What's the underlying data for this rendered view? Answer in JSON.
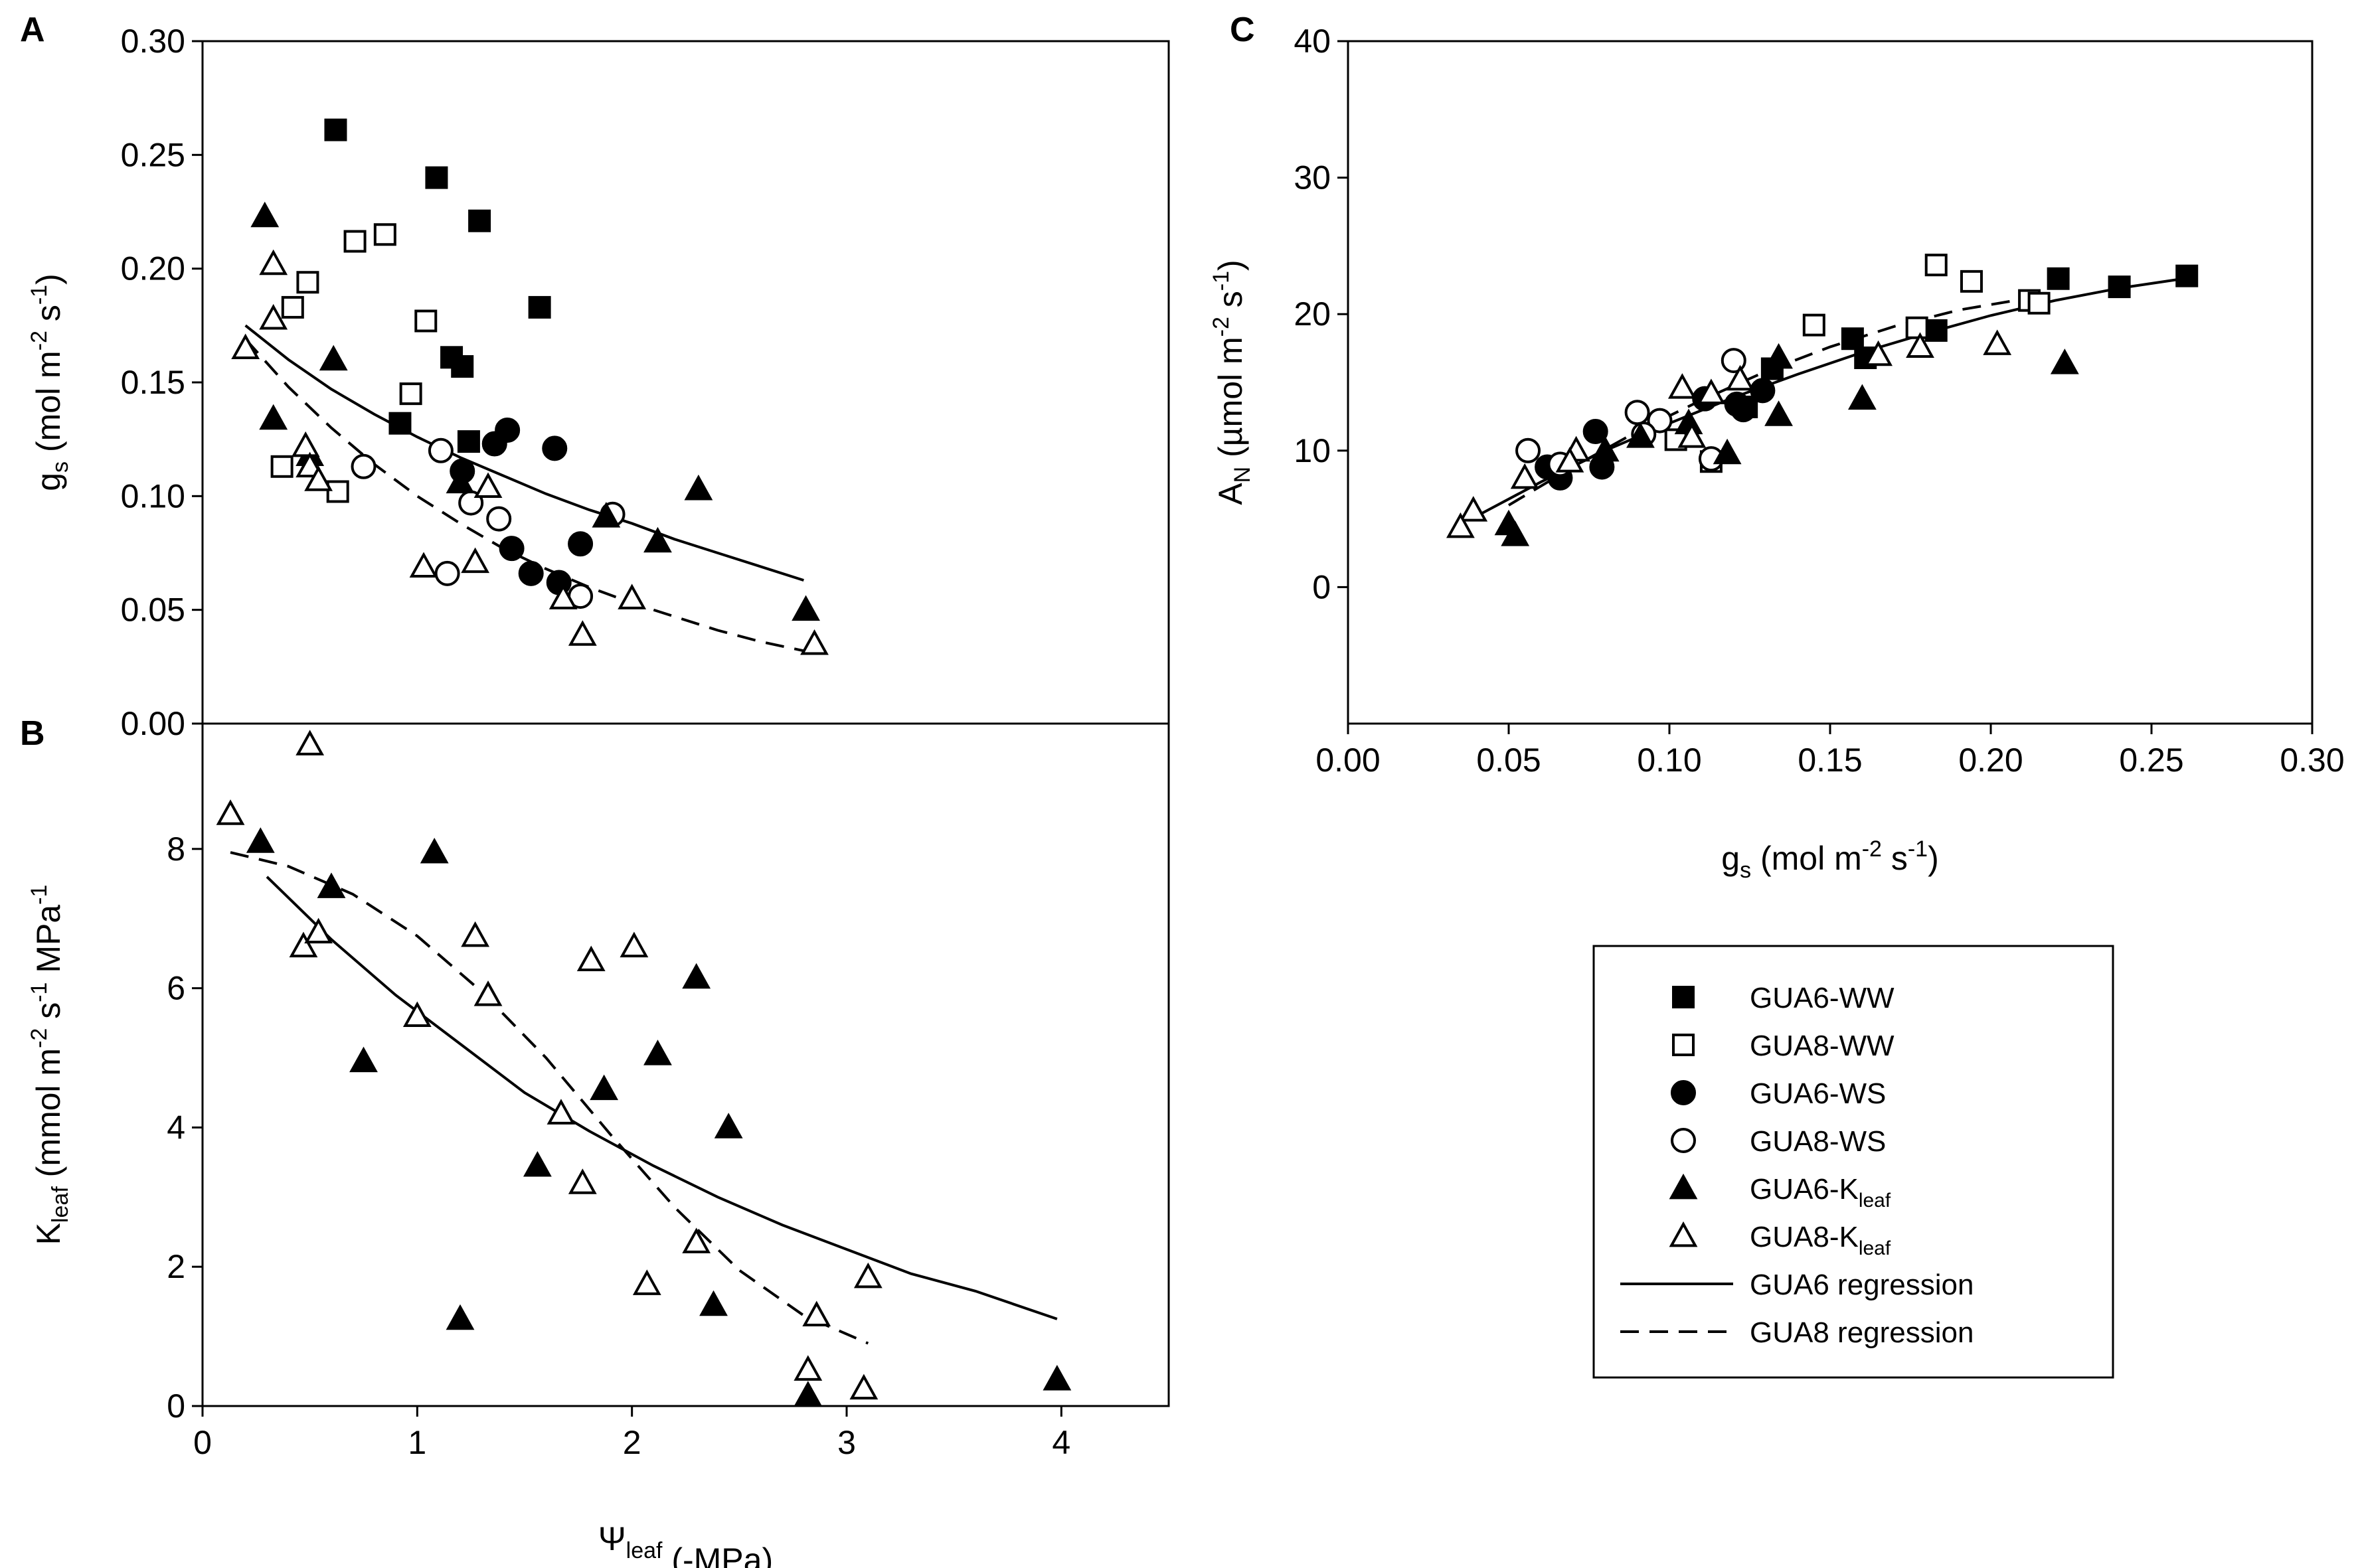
{
  "figure": {
    "panel_labels": [
      "A",
      "B",
      "C"
    ]
  },
  "legend": {
    "entries": [
      {
        "marker": "square-filled",
        "label": "GUA6-WW"
      },
      {
        "marker": "square-open",
        "label": "GUA8-WW"
      },
      {
        "marker": "circle-filled",
        "label": "GUA6-WS"
      },
      {
        "marker": "circle-open",
        "label": "GUA8-WS"
      },
      {
        "marker": "triangle-filled",
        "label": "GUA6-K",
        "sub": "leaf"
      },
      {
        "marker": "triangle-open",
        "label": "GUA8-K",
        "sub": "leaf"
      },
      {
        "marker": "line-solid",
        "label": "GUA6 regression"
      },
      {
        "marker": "line-dashed",
        "label": "GUA8 regression"
      }
    ]
  },
  "chart_data": [
    {
      "panel": "A",
      "type": "scatter",
      "title": "",
      "ylabel": "g_s (mol m^-2 s^-1)",
      "ylabel_parts": {
        "base": "g",
        "sub": "s",
        "pre": " (mol m",
        "exp1": "-2",
        "mid": " s",
        "exp2": "-1",
        "post": ")"
      },
      "xlabel": "",
      "xlim": [
        0,
        4.5
      ],
      "ylim": [
        0,
        0.3
      ],
      "yticks": [
        0,
        0.05,
        0.1,
        0.15,
        0.2,
        0.25,
        0.3
      ],
      "ytick_labels": [
        "0.00",
        "0.05",
        "0.10",
        "0.15",
        "0.20",
        "0.25",
        "0.30"
      ],
      "series": [
        {
          "name": "GUA6-WW",
          "marker": "square-filled",
          "points": [
            [
              0.62,
              0.261
            ],
            [
              1.09,
              0.24
            ],
            [
              1.29,
              0.221
            ],
            [
              1.57,
              0.183
            ],
            [
              1.16,
              0.161
            ],
            [
              1.21,
              0.157
            ],
            [
              0.92,
              0.132
            ],
            [
              1.24,
              0.124
            ]
          ]
        },
        {
          "name": "GUA8-WW",
          "marker": "square-open",
          "points": [
            [
              0.71,
              0.212
            ],
            [
              0.85,
              0.215
            ],
            [
              1.04,
              0.177
            ],
            [
              0.49,
              0.194
            ],
            [
              0.42,
              0.183
            ],
            [
              0.97,
              0.145
            ],
            [
              0.37,
              0.113
            ],
            [
              0.63,
              0.102
            ]
          ]
        },
        {
          "name": "GUA6-WS",
          "marker": "circle-filled",
          "points": [
            [
              1.42,
              0.129
            ],
            [
              1.36,
              0.123
            ],
            [
              1.64,
              0.121
            ],
            [
              1.21,
              0.111
            ],
            [
              1.44,
              0.077
            ],
            [
              1.53,
              0.066
            ],
            [
              1.66,
              0.062
            ],
            [
              1.76,
              0.079
            ]
          ]
        },
        {
          "name": "GUA8-WS",
          "marker": "circle-open",
          "points": [
            [
              0.75,
              0.113
            ],
            [
              1.11,
              0.12
            ],
            [
              1.25,
              0.097
            ],
            [
              1.38,
              0.09
            ],
            [
              1.91,
              0.092
            ],
            [
              1.14,
              0.066
            ],
            [
              1.76,
              0.056
            ]
          ]
        },
        {
          "name": "GUA6-Kleaf",
          "marker": "triangle-filled",
          "points": [
            [
              0.29,
              0.223
            ],
            [
              0.61,
              0.16
            ],
            [
              0.33,
              0.134
            ],
            [
              0.5,
              0.118
            ],
            [
              1.2,
              0.106
            ],
            [
              1.88,
              0.091
            ],
            [
              2.12,
              0.08
            ],
            [
              2.31,
              0.103
            ],
            [
              2.81,
              0.05
            ]
          ]
        },
        {
          "name": "GUA8-Kleaf",
          "marker": "triangle-open",
          "points": [
            [
              0.33,
              0.202
            ],
            [
              0.33,
              0.178
            ],
            [
              0.2,
              0.165
            ],
            [
              0.48,
              0.122
            ],
            [
              0.5,
              0.113
            ],
            [
              0.54,
              0.107
            ],
            [
              1.03,
              0.069
            ],
            [
              1.27,
              0.071
            ],
            [
              1.33,
              0.104
            ],
            [
              1.68,
              0.055
            ],
            [
              2.0,
              0.055
            ],
            [
              1.77,
              0.039
            ],
            [
              2.85,
              0.035
            ]
          ]
        }
      ],
      "regressions": [
        {
          "name": "GUA6 regression",
          "style": "solid",
          "x": [
            0.2,
            0.4,
            0.6,
            0.8,
            1.0,
            1.2,
            1.4,
            1.6,
            1.8,
            2.0,
            2.2,
            2.4,
            2.6,
            2.8
          ],
          "y": [
            0.175,
            0.16,
            0.147,
            0.136,
            0.126,
            0.117,
            0.109,
            0.101,
            0.094,
            0.088,
            0.081,
            0.075,
            0.069,
            0.063
          ]
        },
        {
          "name": "GUA8 regression",
          "style": "dashed",
          "x": [
            0.2,
            0.4,
            0.6,
            0.8,
            1.0,
            1.2,
            1.4,
            1.6,
            1.8,
            2.0,
            2.2,
            2.4,
            2.6,
            2.85
          ],
          "y": [
            0.169,
            0.148,
            0.13,
            0.114,
            0.1,
            0.088,
            0.077,
            0.068,
            0.06,
            0.053,
            0.047,
            0.041,
            0.036,
            0.031
          ]
        }
      ]
    },
    {
      "panel": "B",
      "type": "scatter",
      "title": "",
      "xlabel": "Ψ_leaf (-MPa)",
      "xlabel_parts": {
        "base": "Ψ",
        "sub": "leaf",
        "post": " (-MPa)"
      },
      "ylabel": "K_leaf (mmol m^-2 s^-1 MPa^-1)",
      "ylabel_parts": {
        "base": "K",
        "sub": "leaf",
        "pre": " (mmol m",
        "exp1": "-2",
        "mid": " s",
        "exp2": "-1",
        "mid2": " MPa",
        "exp3": "-1"
      },
      "xlim": [
        0,
        4.5
      ],
      "ylim": [
        0,
        9.8
      ],
      "xticks": [
        0,
        1,
        2,
        3,
        4
      ],
      "xtick_labels": [
        "0",
        "1",
        "2",
        "3",
        "4"
      ],
      "yticks": [
        0,
        2,
        4,
        6,
        8
      ],
      "ytick_labels": [
        "0",
        "2",
        "4",
        "6",
        "8"
      ],
      "series": [
        {
          "name": "GUA6-Kleaf",
          "marker": "triangle-filled",
          "points": [
            [
              0.27,
              8.1
            ],
            [
              0.6,
              7.45
            ],
            [
              0.75,
              4.95
            ],
            [
              1.08,
              7.95
            ],
            [
              1.2,
              1.25
            ],
            [
              1.56,
              3.45
            ],
            [
              1.87,
              4.55
            ],
            [
              2.12,
              5.05
            ],
            [
              2.3,
              6.15
            ],
            [
              2.38,
              1.45
            ],
            [
              2.45,
              4.0
            ],
            [
              2.82,
              0.15
            ],
            [
              3.98,
              0.38
            ]
          ]
        },
        {
          "name": "GUA8-Kleaf",
          "marker": "triangle-open",
          "points": [
            [
              0.13,
              8.5
            ],
            [
              0.5,
              9.5
            ],
            [
              0.47,
              6.6
            ],
            [
              0.54,
              6.8
            ],
            [
              1.0,
              5.6
            ],
            [
              1.27,
              6.75
            ],
            [
              1.33,
              5.9
            ],
            [
              1.67,
              4.2
            ],
            [
              1.77,
              3.2
            ],
            [
              1.81,
              6.4
            ],
            [
              2.01,
              6.6
            ],
            [
              2.07,
              1.75
            ],
            [
              2.3,
              2.35
            ],
            [
              2.82,
              0.52
            ],
            [
              2.86,
              1.3
            ],
            [
              3.08,
              0.25
            ],
            [
              3.1,
              1.85
            ]
          ]
        }
      ],
      "regressions": [
        {
          "name": "GUA6 regression",
          "style": "solid",
          "x": [
            0.3,
            0.6,
            0.9,
            1.2,
            1.5,
            1.8,
            2.1,
            2.4,
            2.7,
            3.0,
            3.3,
            3.6,
            3.98
          ],
          "y": [
            7.6,
            6.7,
            5.9,
            5.2,
            4.5,
            3.95,
            3.45,
            3.0,
            2.6,
            2.25,
            1.9,
            1.65,
            1.25
          ]
        },
        {
          "name": "GUA8 regression",
          "style": "dashed",
          "x": [
            0.13,
            0.4,
            0.7,
            1.0,
            1.3,
            1.6,
            1.9,
            2.2,
            2.5,
            2.8,
            3.1
          ],
          "y": [
            7.95,
            7.75,
            7.35,
            6.75,
            5.95,
            5.0,
            3.9,
            2.85,
            1.95,
            1.3,
            0.9
          ]
        }
      ]
    },
    {
      "panel": "C",
      "type": "scatter",
      "title": "",
      "xlabel": "g_s (mol m^-2 s^-1)",
      "xlabel_parts": {
        "base": "g",
        "sub": "s",
        "pre": " (mol m",
        "exp1": "-2",
        "mid": " s",
        "exp2": "-1",
        "post": ")"
      },
      "ylabel": "A_N (µmol m^-2 s^-1)",
      "ylabel_parts": {
        "base": "A",
        "sub": "N",
        "pre": " (µmol m",
        "exp1": "-2",
        "mid": " s",
        "exp2": "-1",
        "post": ")"
      },
      "xlim": [
        0,
        0.3
      ],
      "ylim": [
        -10,
        40
      ],
      "xticks": [
        0,
        0.05,
        0.1,
        0.15,
        0.2,
        0.25,
        0.3
      ],
      "xtick_labels": [
        "0.00",
        "0.05",
        "0.10",
        "0.15",
        "0.20",
        "0.25",
        "0.30"
      ],
      "yticks": [
        0,
        10,
        20,
        30,
        40
      ],
      "ytick_labels": [
        "0",
        "10",
        "20",
        "30",
        "40"
      ],
      "series": [
        {
          "name": "GUA6-WW",
          "marker": "square-filled",
          "points": [
            [
              0.261,
              22.8
            ],
            [
              0.24,
              22.0
            ],
            [
              0.221,
              22.6
            ],
            [
              0.183,
              18.8
            ],
            [
              0.161,
              16.8
            ],
            [
              0.157,
              18.2
            ],
            [
              0.132,
              16.0
            ],
            [
              0.124,
              13.2
            ]
          ]
        },
        {
          "name": "GUA8-WW",
          "marker": "square-open",
          "points": [
            [
              0.212,
              21.0
            ],
            [
              0.215,
              20.8
            ],
            [
              0.183,
              23.6
            ],
            [
              0.194,
              22.4
            ],
            [
              0.145,
              19.2
            ],
            [
              0.177,
              19.0
            ],
            [
              0.113,
              9.2
            ],
            [
              0.102,
              10.8
            ]
          ]
        },
        {
          "name": "GUA6-WS",
          "marker": "circle-filled",
          "points": [
            [
              0.129,
              14.4
            ],
            [
              0.123,
              13.0
            ],
            [
              0.121,
              13.4
            ],
            [
              0.111,
              13.8
            ],
            [
              0.077,
              11.4
            ],
            [
              0.066,
              8.0
            ],
            [
              0.062,
              8.8
            ],
            [
              0.079,
              8.8
            ]
          ]
        },
        {
          "name": "GUA8-WS",
          "marker": "circle-open",
          "points": [
            [
              0.113,
              9.4
            ],
            [
              0.12,
              16.6
            ],
            [
              0.097,
              12.2
            ],
            [
              0.09,
              12.8
            ],
            [
              0.092,
              11.2
            ],
            [
              0.066,
              9.0
            ],
            [
              0.056,
              10.0
            ]
          ]
        },
        {
          "name": "GUA6-Kleaf",
          "marker": "triangle-filled",
          "points": [
            [
              0.223,
              16.4
            ],
            [
              0.16,
              13.8
            ],
            [
              0.134,
              16.8
            ],
            [
              0.118,
              9.8
            ],
            [
              0.106,
              12.0
            ],
            [
              0.091,
              11.0
            ],
            [
              0.08,
              10.0
            ],
            [
              0.134,
              12.6
            ],
            [
              0.05,
              4.6
            ],
            [
              0.052,
              3.8
            ]
          ]
        },
        {
          "name": "GUA8-Kleaf",
          "marker": "triangle-open",
          "points": [
            [
              0.202,
              17.8
            ],
            [
              0.178,
              17.6
            ],
            [
              0.165,
              17.0
            ],
            [
              0.122,
              15.2
            ],
            [
              0.113,
              14.2
            ],
            [
              0.107,
              11.0
            ],
            [
              0.104,
              14.6
            ],
            [
              0.071,
              10.0
            ],
            [
              0.069,
              9.2
            ],
            [
              0.055,
              8.0
            ],
            [
              0.039,
              5.6
            ],
            [
              0.035,
              4.4
            ]
          ]
        }
      ],
      "regressions": [
        {
          "name": "GUA6 regression",
          "style": "solid",
          "x": [
            0.04,
            0.06,
            0.08,
            0.1,
            0.12,
            0.14,
            0.16,
            0.18,
            0.2,
            0.22,
            0.24,
            0.26
          ],
          "y": [
            5.2,
            7.7,
            10.0,
            12.0,
            13.9,
            15.6,
            17.2,
            18.6,
            19.9,
            21.0,
            21.9,
            22.6
          ]
        },
        {
          "name": "GUA8 regression",
          "style": "dashed",
          "x": [
            0.05,
            0.07,
            0.09,
            0.11,
            0.13,
            0.15,
            0.17,
            0.19,
            0.215
          ],
          "y": [
            6.0,
            8.8,
            11.4,
            13.7,
            15.8,
            17.6,
            19.1,
            20.3,
            21.3
          ]
        }
      ]
    }
  ]
}
